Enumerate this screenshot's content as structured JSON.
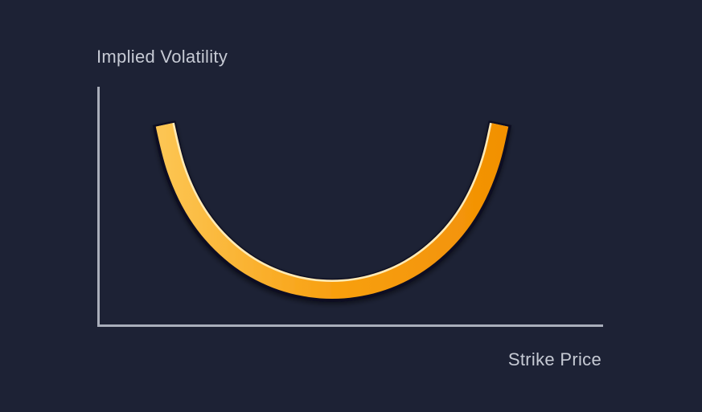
{
  "chart_data": {
    "type": "line",
    "title": "",
    "ylabel": "Implied Volatility",
    "xlabel": "Strike Price",
    "description": "U-shaped volatility smile: implied volatility is highest at low and high strike prices and lowest near the middle (at-the-money) strike",
    "axes": {
      "ticks": false,
      "grid": false,
      "tick_labels": [],
      "x_range_normalized": [
        0,
        1
      ],
      "y_relative_range": [
        0,
        1
      ]
    },
    "legend": false,
    "series": [
      {
        "name": "implied-volatility-smile",
        "x_normalized": [
          0,
          0.019,
          0.048,
          0.085,
          0.13,
          0.182,
          0.239,
          0.3,
          0.365,
          0.432,
          0.5,
          0.568,
          0.635,
          0.7,
          0.761,
          0.818,
          0.87,
          0.915,
          0.952,
          0.981,
          1
        ],
        "iv_relative": [
          1,
          0.81,
          0.64,
          0.49,
          0.36,
          0.25,
          0.16,
          0.09,
          0.04,
          0.01,
          0,
          0.01,
          0.04,
          0.09,
          0.16,
          0.25,
          0.36,
          0.49,
          0.64,
          0.81,
          1
        ]
      }
    ]
  },
  "colors": {
    "background": "#1d2235",
    "axis": "#a9aeba",
    "label": "#c6cad4",
    "curve_gradient": [
      "#fcc552",
      "#f8a011",
      "#f29104"
    ],
    "curve_outline": "#0d1120",
    "curve_highlight": "#ffeab5"
  }
}
